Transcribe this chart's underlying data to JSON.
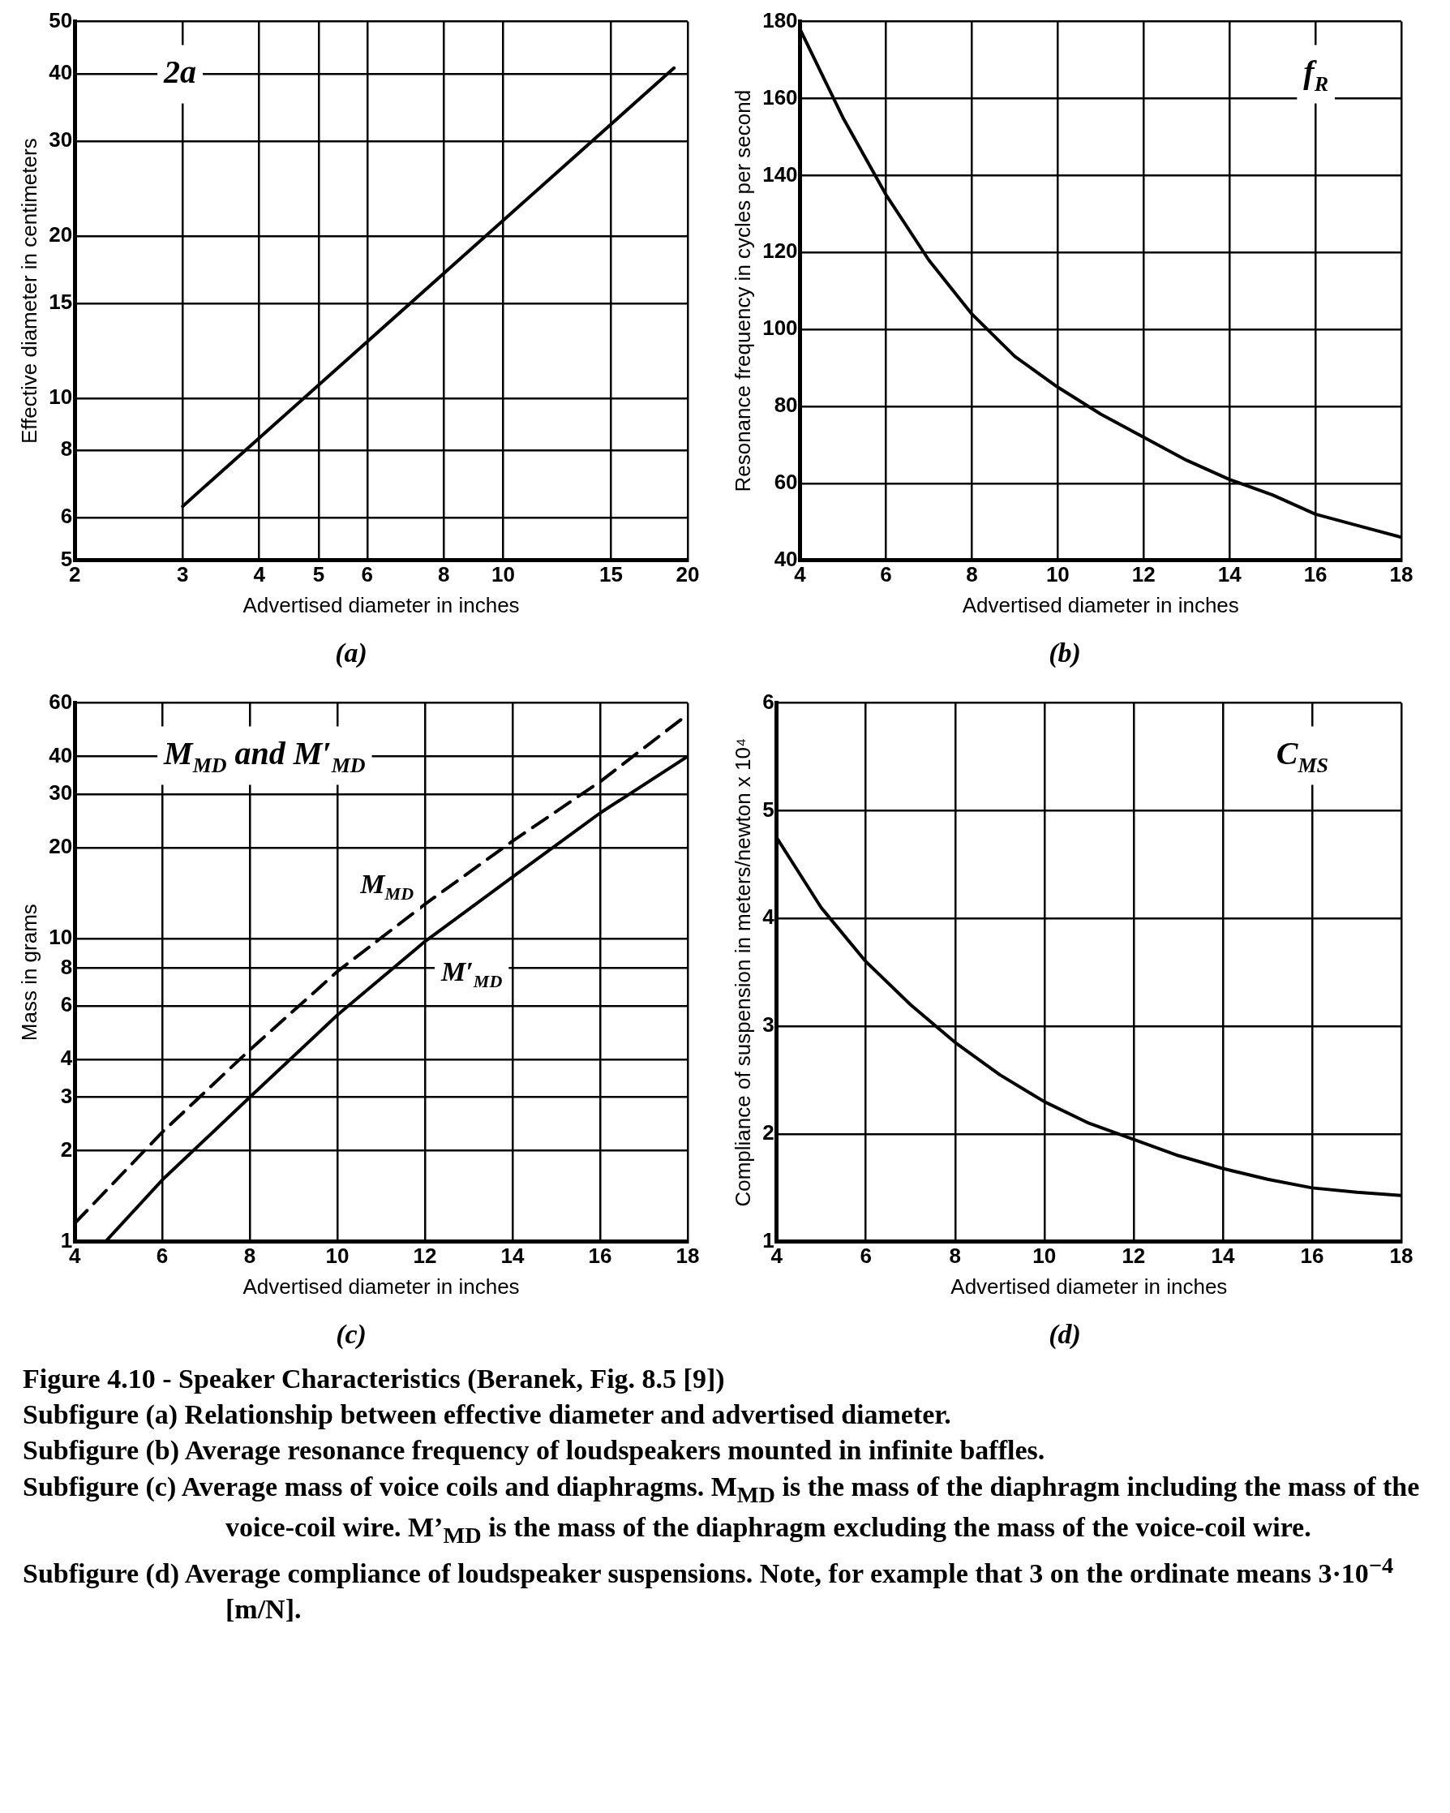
{
  "chart_data": [
    {
      "type": "line",
      "title": "(a)",
      "xlabel": "Advertised diameter in inches",
      "ylabel": "Effective diameter in centimeters",
      "log": "xy",
      "grid": true,
      "marker": "none",
      "annotations": [
        "2a"
      ],
      "xlim": [
        2,
        20
      ],
      "xticks": [
        2,
        3,
        4,
        5,
        6,
        8,
        10,
        15,
        20
      ],
      "ylim": [
        5,
        50
      ],
      "yticks": [
        5,
        6,
        8,
        10,
        15,
        20,
        30,
        40,
        50
      ],
      "series": [
        {
          "color": "#000000",
          "x": [
            3,
            19
          ],
          "values": [
            6.3,
            41
          ]
        }
      ]
    },
    {
      "type": "line",
      "title": "(b)",
      "xlabel": "Advertised diameter in inches",
      "ylabel": "Resonance frequency in cycles per second",
      "grid": true,
      "marker": "none",
      "annotations": [
        "f$_{R}$"
      ],
      "xlim": [
        4,
        18
      ],
      "xticks": [
        4,
        6,
        8,
        10,
        12,
        14,
        16,
        18
      ],
      "ylim": [
        40,
        180
      ],
      "yticks": [
        40,
        60,
        80,
        100,
        120,
        140,
        160,
        180
      ],
      "series": [
        {
          "color": "#000000",
          "x": [
            4,
            5,
            6,
            7,
            8,
            9,
            10,
            11,
            12,
            13,
            14,
            15,
            16,
            17,
            18
          ],
          "values": [
            178,
            155,
            135,
            118,
            104,
            93,
            85,
            78,
            72,
            66,
            61,
            57,
            52,
            49,
            46
          ]
        }
      ]
    },
    {
      "type": "line",
      "title": "(c)",
      "xlabel": "Advertised diameter in inches",
      "ylabel": "Mass in grams",
      "log": "y",
      "grid": true,
      "marker": "none",
      "annotations": [
        "M$_{MD}$ and M′$_{MD}$"
      ],
      "xlim": [
        4,
        18
      ],
      "xticks": [
        4,
        6,
        8,
        10,
        12,
        14,
        16,
        18
      ],
      "ylim": [
        1,
        60
      ],
      "yticks": [
        1,
        2,
        3,
        4,
        6,
        8,
        10,
        20,
        30,
        40,
        60
      ],
      "series": [
        {
          "name": "M$_{MD}$",
          "color": "#000000",
          "line_style": "dashed",
          "x": [
            4,
            6,
            8,
            10,
            12,
            14,
            16,
            18
          ],
          "values": [
            1.15,
            2.3,
            4.3,
            7.8,
            13,
            21,
            33,
            55
          ]
        },
        {
          "name": "M′$_{MD}$",
          "color": "#000000",
          "line_style": "solid",
          "x": [
            4.7,
            6,
            8,
            10,
            12,
            14,
            16,
            18
          ],
          "values": [
            1,
            1.6,
            3,
            5.6,
            9.8,
            16,
            26,
            40
          ]
        }
      ]
    },
    {
      "type": "line",
      "title": "(d)",
      "xlabel": "Advertised diameter in inches",
      "ylabel": "Compliance of suspension in meters/newton x 10⁴",
      "grid": true,
      "marker": "none",
      "annotations": [
        "C$_{MS}$"
      ],
      "xlim": [
        4,
        18
      ],
      "xticks": [
        4,
        6,
        8,
        10,
        12,
        14,
        16,
        18
      ],
      "ylim": [
        1,
        6
      ],
      "yticks": [
        1,
        2,
        3,
        4,
        5,
        6
      ],
      "series": [
        {
          "color": "#000000",
          "x": [
            4,
            5,
            6,
            7,
            8,
            9,
            10,
            11,
            12,
            13,
            14,
            15,
            16,
            17,
            18
          ],
          "values": [
            4.75,
            4.1,
            3.6,
            3.2,
            2.85,
            2.55,
            2.3,
            2.1,
            1.95,
            1.8,
            1.68,
            1.58,
            1.5,
            1.46,
            1.43
          ]
        }
      ]
    },
    {
      "type": "other",
      "title": "Figure 4.10 - Speaker Characteristics (Beranek, Fig. 8.5 [9])",
      "annotations": [
        "Subfigure (a)  Relationship between effective diameter and advertised diameter.",
        "Subfigure (b)  Average resonance frequency of loudspeakers mounted in infinite baffles.",
        "Subfigure (c)  Average mass of voice coils and diaphragms. M$_{MD}$ is the mass of the diaphragm including the mass of the voice-coil wire.  M’$_{MD}$ is the mass of the diaphragm excluding the mass of the voice-coil wire.",
        "Subfigure (d)  Average compliance of loudspeaker suspensions. Note, for example that 3 on the ordinate means 3·10$^{−4}$ [m/N]."
      ]
    }
  ]
}
